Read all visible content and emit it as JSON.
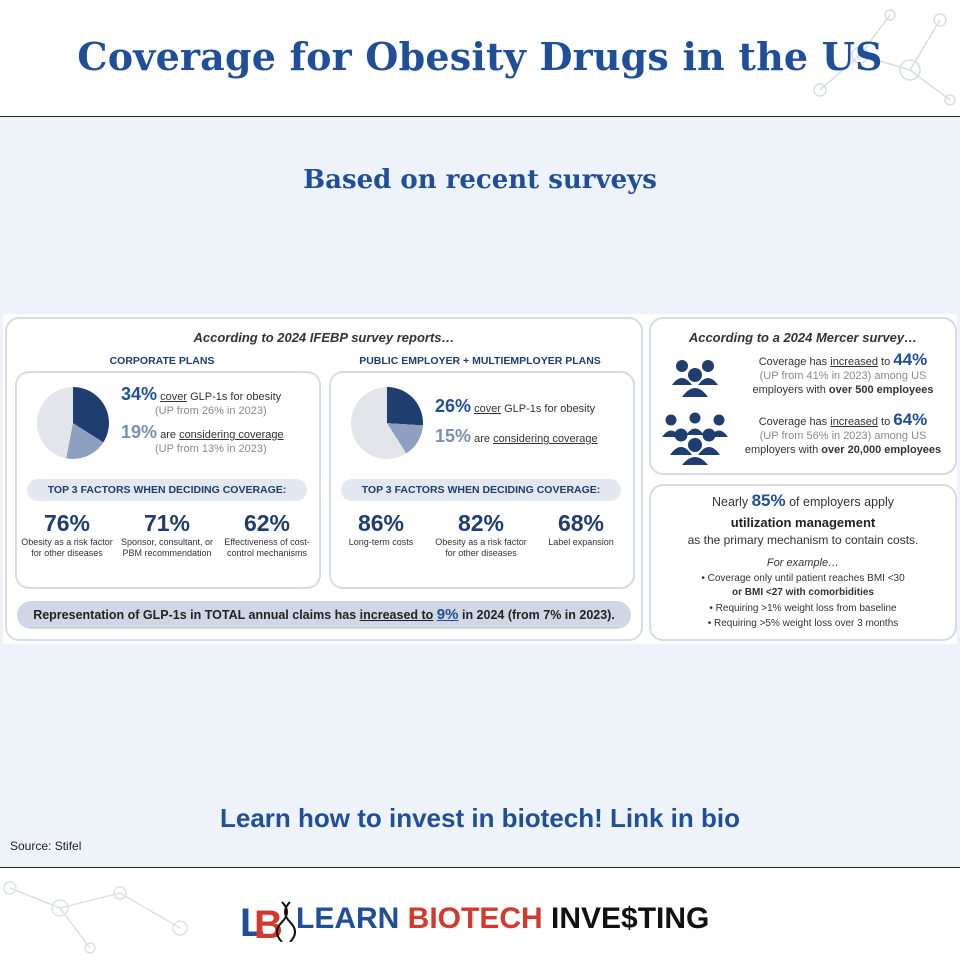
{
  "header": {
    "title": "Coverage for Obesity Drugs in the US"
  },
  "main": {
    "subtitle": "Based on recent surveys",
    "cta": "Learn how to invest in biotech! Link in bio",
    "source": "Source: Stifel"
  },
  "infographic": {
    "ifebp": {
      "title": "According to 2024 IFEBP survey reports…",
      "corporate": {
        "heading": "CORPORATE PLANS",
        "pie_cover_fraction": 0.34,
        "pie_consider_fraction": 0.19,
        "cover_pct": "34%",
        "cover_word": "cover",
        "cover_rest": "GLP-1s for obesity",
        "cover_prev": "(UP from 26% in 2023)",
        "consider_pct": "19%",
        "consider_pre": "are",
        "consider_word": "considering coverage",
        "consider_prev": "(UP from 13% in 2023)",
        "factors_heading": "TOP 3 FACTORS WHEN DECIDING COVERAGE:",
        "factors": [
          {
            "pct": "76%",
            "label": "Obesity as a risk factor for other diseases"
          },
          {
            "pct": "71%",
            "label": "Sponsor, consultant, or PBM recommendation"
          },
          {
            "pct": "62%",
            "label": "Effectiveness of cost-control mechanisms"
          }
        ]
      },
      "public": {
        "heading": "PUBLIC EMPLOYER + MULTIEMPLOYER PLANS",
        "pie_cover_fraction": 0.26,
        "pie_consider_fraction": 0.15,
        "cover_pct": "26%",
        "cover_word": "cover",
        "cover_rest": "GLP-1s for obesity",
        "consider_pct": "15%",
        "consider_pre": "are",
        "consider_word": "considering coverage",
        "factors_heading": "TOP 3 FACTORS WHEN DECIDING COVERAGE:",
        "factors": [
          {
            "pct": "86%",
            "label": "Long-term costs"
          },
          {
            "pct": "82%",
            "label": "Obesity as a risk factor for other diseases"
          },
          {
            "pct": "68%",
            "label": "Label expansion"
          }
        ]
      },
      "claims": {
        "pre": "Representation of GLP-1s in TOTAL annual claims has",
        "inc": "increased to",
        "pct": "9%",
        "post": "in 2024 (from 7% in 2023)."
      }
    },
    "mercer": {
      "title": "According to a 2024 Mercer survey…",
      "rows": [
        {
          "line1_pre": "Coverage has",
          "line1_inc": "increased",
          "line1_to": "to",
          "pct": "44%",
          "prev": "(UP from 41% in 2023) among US",
          "line3_pre": "employers with",
          "line3_bold": "over 500 employees"
        },
        {
          "line1_pre": "Coverage has",
          "line1_inc": "increased",
          "line1_to": "to",
          "pct": "64%",
          "prev": "(UP from 56% in 2023) among US",
          "line3_pre": "employers with",
          "line3_bold": "over 20,000 employees"
        }
      ],
      "um": {
        "line1_pre": "Nearly",
        "pct": "85%",
        "line1_post": "of employers apply",
        "line2": "utilization management",
        "line3": "as the primary mechanism to contain costs.",
        "example": "For example…",
        "bullets": [
          "• Coverage only until patient reaches BMI <30",
          "or BMI <27 with comorbidities",
          "• Requiring >1% weight loss from baseline",
          "• Requiring >5% weight loss over 3 months"
        ]
      }
    }
  },
  "logo": {
    "part1": "LEARN ",
    "part2": "BIO",
    "part3": "TECH ",
    "part4": "INVE$TING"
  },
  "colors": {
    "brand": "#1f4f99",
    "dark_navy": "#1f3d6e",
    "logo_red": "#d13a2c"
  }
}
